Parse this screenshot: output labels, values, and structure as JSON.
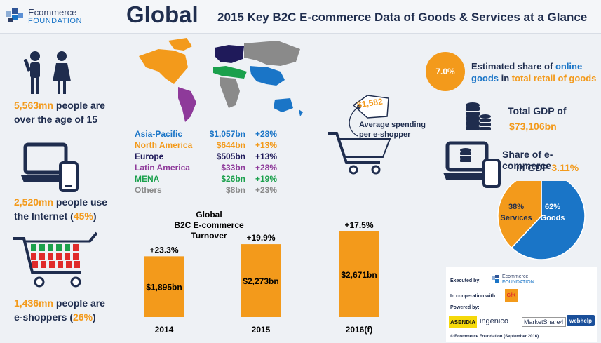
{
  "header": {
    "logo_line1": "Ecommerce",
    "logo_line2": "FOUNDATION",
    "title": "Global",
    "subtitle": "2015 Key B2C E-commerce Data of Goods & Services at a Glance"
  },
  "left": {
    "people": {
      "value": "5,563mn",
      "text1": " people are",
      "text2": "over the age of 15"
    },
    "internet": {
      "value": "2,520mn",
      "text1": " people use",
      "text2_a": "the Internet (",
      "text2_pct": "45%",
      "text2_b": ")"
    },
    "shoppers": {
      "value": "1,436mn",
      "text1": " people are",
      "text2_a": "e-shoppers (",
      "text2_pct": "26%",
      "text2_b": ")"
    }
  },
  "regions": [
    {
      "name": "Asia-Pacific",
      "value": "$1,057bn",
      "growth": "+28%",
      "color": "#1a75c7"
    },
    {
      "name": "North America",
      "value": "$644bn",
      "growth": "+13%",
      "color": "#f39a1b"
    },
    {
      "name": "Europe",
      "value": "$505bn",
      "growth": "+13%",
      "color": "#1f1a5a"
    },
    {
      "name": "Latin America",
      "value": "$33bn",
      "growth": "+28%",
      "color": "#8e3a9a"
    },
    {
      "name": "MENA",
      "value": "$26bn",
      "growth": "+19%",
      "color": "#1aa04c"
    },
    {
      "name": "Others",
      "value": "$8bn",
      "growth": "+23%",
      "color": "#8a8a8a"
    }
  ],
  "spending": {
    "price": "$1,582",
    "label_line1": "Average spending",
    "label_line2": "per e-shopper"
  },
  "chart_data": {
    "type": "bar",
    "title": "Global B2C E-commerce Turnover",
    "title_line1": "Global",
    "title_line2": "B2C E-commerce",
    "title_line3": "Turnover",
    "categories": [
      "2014",
      "2015",
      "2016(f)"
    ],
    "values": [
      1895,
      2273,
      2671
    ],
    "value_labels": [
      "$1,895bn",
      "$2,273bn",
      "$2,671bn"
    ],
    "growth_labels": [
      "+23.3%",
      "+19.9%",
      "+17.5%"
    ],
    "color": "#f39a1b"
  },
  "right": {
    "share_value": "7.0%",
    "share_text_a": "Estimated share of ",
    "share_text_online": "online",
    "share_text_goods": "goods",
    "share_text_b": " in ",
    "share_text_total": "total retail of goods",
    "gdp_label": "Total GDP of",
    "gdp_value": "$73,106bn",
    "ec_label1": "Share of e-commerce",
    "ec_label2_a": "in GDP ",
    "ec_label2_pct": "3.11%"
  },
  "pie_data": {
    "type": "pie",
    "slices": [
      {
        "label": "Services",
        "pct": 38,
        "pct_label": "38%",
        "color": "#f39a1b"
      },
      {
        "label": "Goods",
        "pct": 62,
        "pct_label": "62%",
        "color": "#1a75c7"
      }
    ]
  },
  "partners": {
    "executed_by": "Executed by:",
    "cooperation": "In cooperation with:",
    "powered_by": "Powered by:",
    "gfk": "GfK",
    "asendia": "ASENDIA",
    "ingenico": "ingenico",
    "marketshare": "MarketShare4",
    "webhelp": "webhelp",
    "copyright": "© Ecommerce Foundation (September 2016)"
  }
}
